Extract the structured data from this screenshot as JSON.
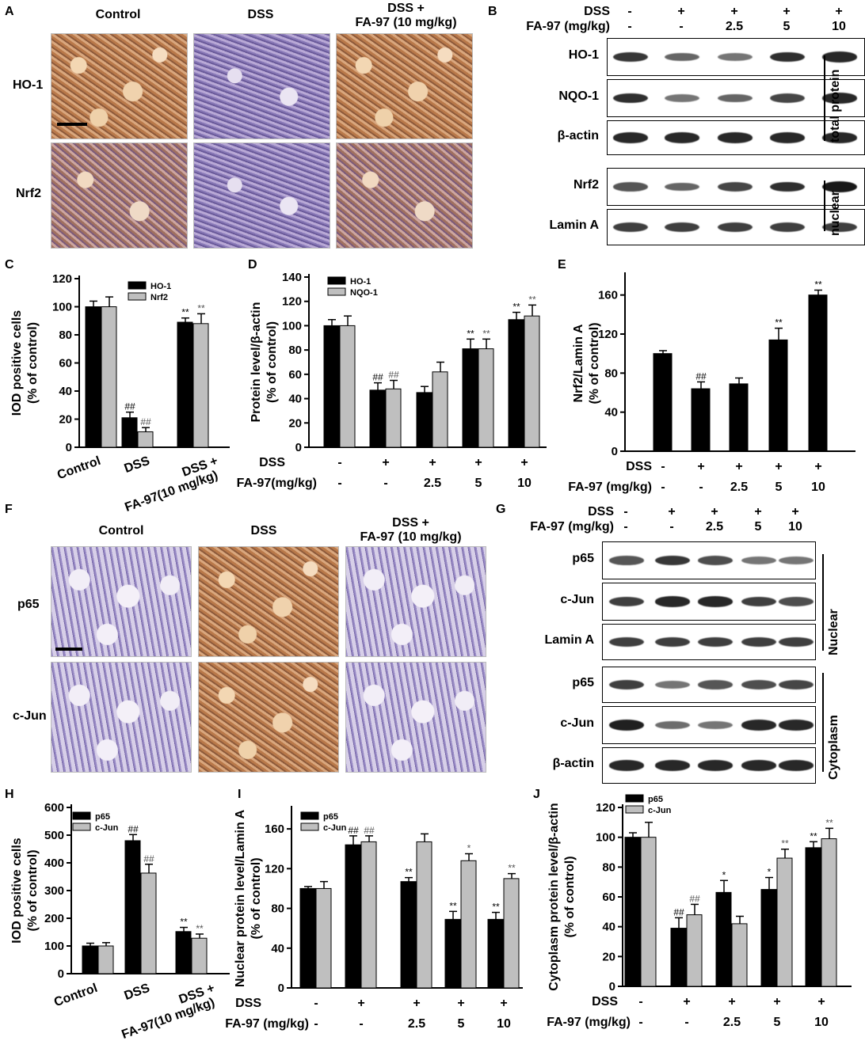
{
  "panels": {
    "A": "A",
    "B": "B",
    "C": "C",
    "D": "D",
    "E": "E",
    "F": "F",
    "G": "G",
    "H": "H",
    "I": "I",
    "J": "J"
  },
  "panelA": {
    "headers": [
      "Control",
      "DSS",
      "DSS +",
      "FA-97 (10 mg/kg)"
    ],
    "rows": [
      "HO-1",
      "Nrf2"
    ]
  },
  "panelF": {
    "headers": [
      "Control",
      "DSS",
      "DSS +",
      "FA-97 (10 mg/kg)"
    ],
    "rows": [
      "p65",
      "c-Jun"
    ]
  },
  "panelB": {
    "dss_label": "DSS",
    "fa_label": "FA-97 (mg/kg)",
    "dss": [
      "-",
      "+",
      "+",
      "+",
      "+"
    ],
    "fa": [
      "-",
      "-",
      "2.5",
      "5",
      "10"
    ],
    "blots": [
      "HO-1",
      "NQO-1",
      "β-actin",
      "Nrf2",
      "Lamin A"
    ],
    "side_labels": [
      "total protein",
      "nuclear"
    ]
  },
  "panelG": {
    "dss_label": "DSS",
    "fa_label": "FA-97 (mg/kg)",
    "dss": [
      "-",
      "+",
      "+",
      "+",
      "+"
    ],
    "fa": [
      "-",
      "-",
      "2.5",
      "5",
      "10"
    ],
    "blots": [
      "p65",
      "c-Jun",
      "Lamin A",
      "p65",
      "c-Jun",
      "β-actin"
    ],
    "side_labels": [
      "Nuclear",
      "Cytoplasm"
    ]
  },
  "chart_data": [
    {
      "panel": "C",
      "type": "bar",
      "ylabel": "IOD positive cells (% of control)",
      "categories": [
        "Control",
        "DSS",
        "DSS + FA-97(10 mg/kg)"
      ],
      "ylim": [
        0,
        120
      ],
      "yticks": [
        0,
        20,
        40,
        60,
        80,
        100,
        120
      ],
      "series": [
        {
          "name": "HO-1",
          "color": "#000000",
          "values": [
            100,
            21,
            89
          ],
          "errors": [
            4,
            4,
            3
          ],
          "marks": [
            "",
            "##",
            "**"
          ]
        },
        {
          "name": "Nrf2",
          "color": "#bfbfbf",
          "values": [
            100,
            11,
            88
          ],
          "errors": [
            7,
            3,
            7
          ],
          "marks": [
            "",
            "##",
            "**"
          ]
        }
      ]
    },
    {
      "panel": "D",
      "type": "bar",
      "ylabel": "Protein level/β-actin (% of control)",
      "dss_label": "DSS",
      "fa_label": "FA-97(mg/kg)",
      "dss": [
        "-",
        "+",
        "+",
        "+",
        "+"
      ],
      "fa": [
        "-",
        "-",
        "2.5",
        "5",
        "10"
      ],
      "ylim": [
        0,
        140
      ],
      "yticks": [
        0,
        20,
        40,
        60,
        80,
        100,
        120,
        140
      ],
      "series": [
        {
          "name": "HO-1",
          "color": "#000000",
          "values": [
            100,
            47,
            45,
            81,
            105
          ],
          "errors": [
            5,
            6,
            5,
            8,
            6
          ],
          "marks": [
            "",
            "##",
            "",
            "**",
            "**"
          ]
        },
        {
          "name": "NQO-1",
          "color": "#bfbfbf",
          "values": [
            100,
            48,
            62,
            81,
            108
          ],
          "errors": [
            8,
            7,
            8,
            8,
            9
          ],
          "marks": [
            "",
            "##",
            "",
            "**",
            "**"
          ]
        }
      ]
    },
    {
      "panel": "E",
      "type": "bar",
      "ylabel": "Nrf2/Lamin A (% of control)",
      "dss_label": "DSS",
      "fa_label": "FA-97 (mg/kg)",
      "dss": [
        "-",
        "+",
        "+",
        "+",
        "+"
      ],
      "fa": [
        "-",
        "-",
        "2.5",
        "5",
        "10"
      ],
      "ylim": [
        0,
        180
      ],
      "yticks": [
        0,
        40,
        80,
        120,
        160
      ],
      "series": [
        {
          "name": "",
          "color": "#000000",
          "values": [
            100,
            64,
            69,
            114,
            160
          ],
          "errors": [
            3,
            7,
            6,
            12,
            5
          ],
          "marks": [
            "",
            "##",
            "",
            "**",
            "**"
          ]
        }
      ]
    },
    {
      "panel": "H",
      "type": "bar",
      "ylabel": "IOD positive cells (% of control)",
      "categories": [
        "Control",
        "DSS",
        "DSS + FA-97(10 mg/kg)"
      ],
      "ylim": [
        0,
        600
      ],
      "yticks": [
        0,
        100,
        200,
        300,
        400,
        500,
        600
      ],
      "series": [
        {
          "name": "p65",
          "color": "#000000",
          "values": [
            100,
            480,
            152
          ],
          "errors": [
            10,
            22,
            15
          ],
          "marks": [
            "",
            "##",
            "**"
          ]
        },
        {
          "name": "c-Jun",
          "color": "#bfbfbf",
          "values": [
            100,
            363,
            128
          ],
          "errors": [
            12,
            32,
            15
          ],
          "marks": [
            "",
            "##",
            "**"
          ]
        }
      ]
    },
    {
      "panel": "I",
      "type": "bar",
      "ylabel": "Nuclear protein level/Lamin A (% of control)",
      "dss_label": "DSS",
      "fa_label": "FA-97 (mg/kg)",
      "dss": [
        "-",
        "+",
        "+",
        "+",
        "+"
      ],
      "fa": [
        "-",
        "-",
        "2.5",
        "5",
        "10"
      ],
      "ylim": [
        0,
        180
      ],
      "yticks": [
        0,
        40,
        80,
        120,
        160
      ],
      "series": [
        {
          "name": "p65",
          "color": "#000000",
          "values": [
            100,
            144,
            107,
            69,
            69
          ],
          "errors": [
            2,
            9,
            4,
            8,
            7
          ],
          "marks": [
            "",
            "##",
            "**",
            "**",
            "**"
          ]
        },
        {
          "name": "c-Jun",
          "color": "#bfbfbf",
          "values": [
            100,
            147,
            147,
            128,
            110
          ],
          "errors": [
            7,
            6,
            8,
            7,
            5
          ],
          "marks": [
            "",
            "##",
            "",
            "*",
            "**"
          ]
        }
      ]
    },
    {
      "panel": "J",
      "type": "bar",
      "ylabel": "Cytoplasm protein level/β-actin (% of control)",
      "dss_label": "DSS",
      "fa_label": "FA-97 (mg/kg)",
      "dss": [
        "-",
        "+",
        "+",
        "+",
        "+"
      ],
      "fa": [
        "-",
        "-",
        "2.5",
        "5",
        "10"
      ],
      "ylim": [
        0,
        120
      ],
      "yticks": [
        0,
        20,
        40,
        60,
        80,
        100,
        120
      ],
      "series": [
        {
          "name": "p65",
          "color": "#000000",
          "values": [
            100,
            39,
            63,
            65,
            93
          ],
          "errors": [
            3,
            7,
            8,
            8,
            4
          ],
          "marks": [
            "",
            "##",
            "*",
            "*",
            "**"
          ]
        },
        {
          "name": "c-Jun",
          "color": "#bfbfbf",
          "values": [
            100,
            48,
            42,
            86,
            99
          ],
          "errors": [
            10,
            7,
            5,
            6,
            7
          ],
          "marks": [
            "",
            "##",
            "",
            "**",
            "**"
          ]
        }
      ]
    }
  ]
}
